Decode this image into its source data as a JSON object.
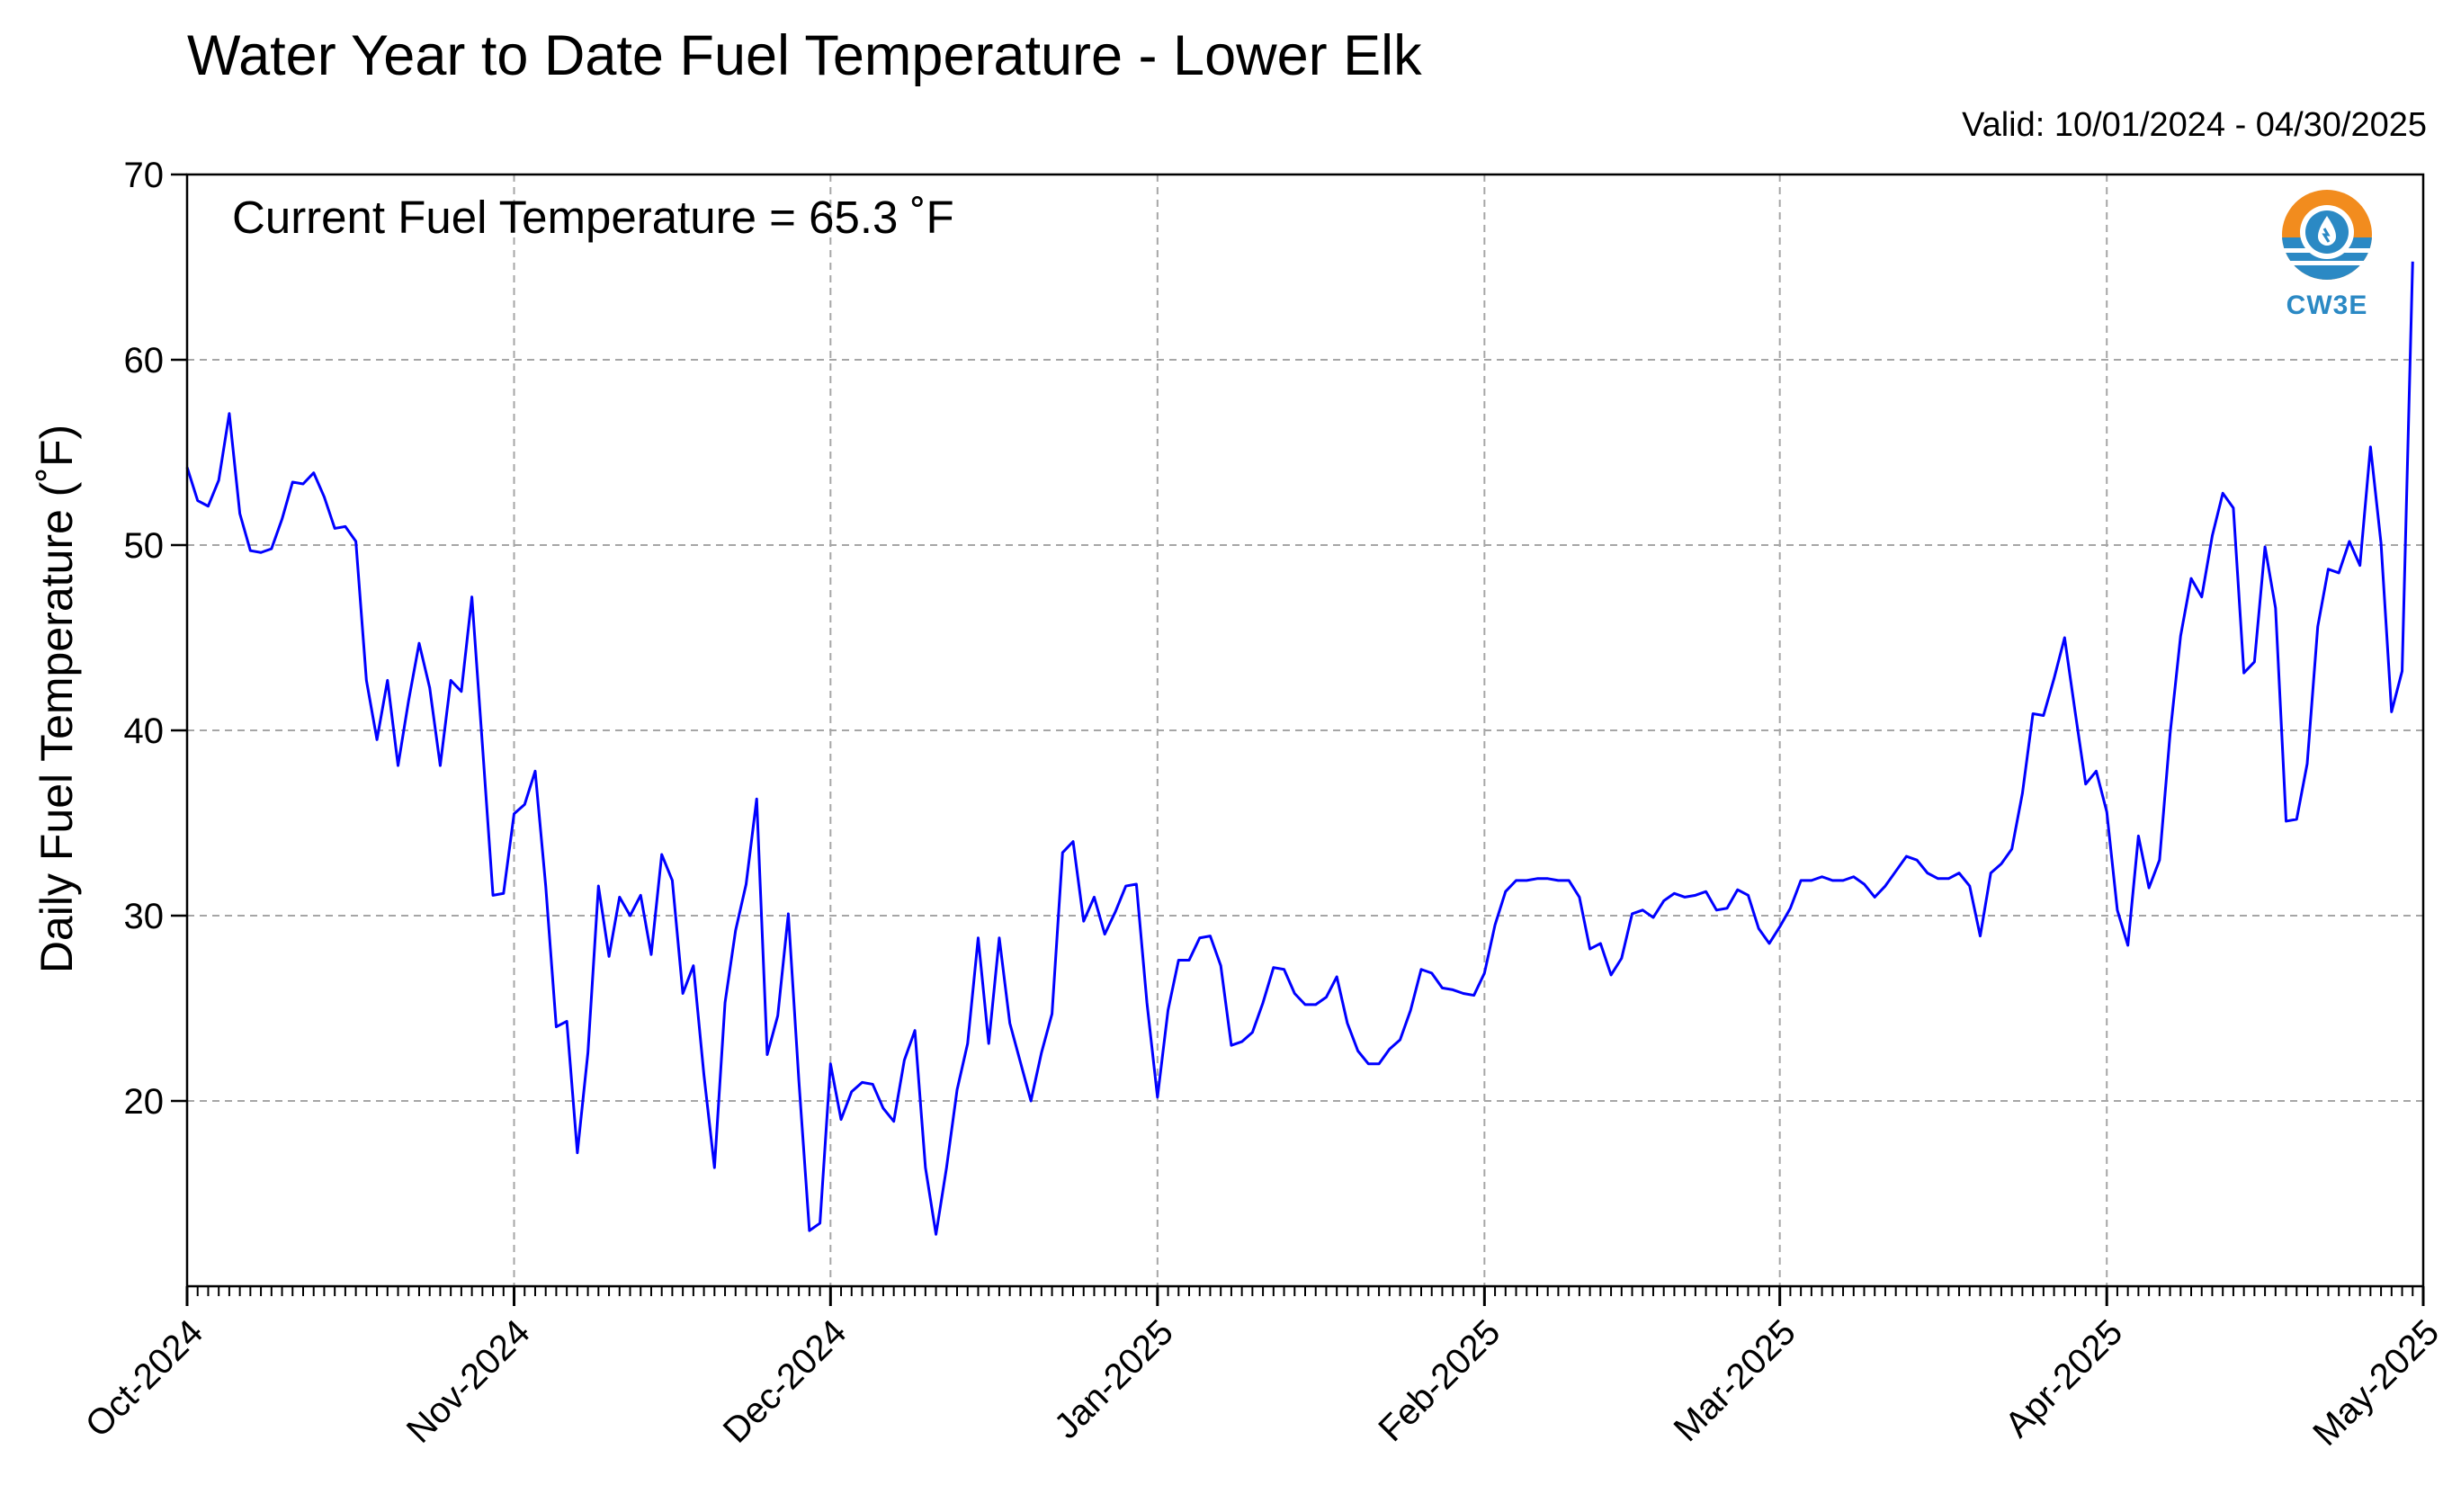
{
  "header": {
    "title": "Water Year to Date Fuel Temperature - Lower Elk",
    "valid": "Valid: 10/01/2024 - 04/30/2025"
  },
  "annotation": "Current Fuel Temperature = 65.3 ˚F",
  "logo": {
    "text": "CW3E",
    "colors": {
      "orange": "#f28c1e",
      "blue": "#2b89c4"
    }
  },
  "chart_data": {
    "type": "line",
    "title": "Water Year to Date Fuel Temperature - Lower Elk",
    "ylabel": "Daily Fuel Temperature (˚F)",
    "xlabel": "",
    "ylim": [
      10,
      70
    ],
    "xlim": [
      "2024-10-01",
      "2025-05-01"
    ],
    "grid": true,
    "line_color": "#0000ff",
    "y_ticks": [
      20,
      30,
      40,
      50,
      60,
      70
    ],
    "x_ticks": [
      {
        "date": "2024-10-01",
        "label": "Oct-2024"
      },
      {
        "date": "2024-11-01",
        "label": "Nov-2024"
      },
      {
        "date": "2024-12-01",
        "label": "Dec-2024"
      },
      {
        "date": "2025-01-01",
        "label": "Jan-2025"
      },
      {
        "date": "2025-02-01",
        "label": "Feb-2025"
      },
      {
        "date": "2025-03-01",
        "label": "Mar-2025"
      },
      {
        "date": "2025-04-01",
        "label": "Apr-2025"
      },
      {
        "date": "2025-05-01",
        "label": "May-2025"
      }
    ],
    "series": [
      {
        "start_date": "2024-10-01",
        "values": [
          54.2,
          52.4,
          52.1,
          53.5,
          57.1,
          51.7,
          49.7,
          49.6,
          49.8,
          51.4,
          53.4,
          53.3,
          53.9,
          52.6,
          50.9,
          51.0,
          50.2,
          42.7,
          39.5,
          42.7,
          38.1,
          41.6,
          44.7,
          42.3,
          38.1,
          42.7,
          42.1,
          47.2,
          39.2,
          31.1,
          31.2,
          35.5,
          36.0,
          37.8,
          31.6,
          24.0,
          24.3,
          17.2,
          22.6,
          31.6,
          27.8,
          31.0,
          30.0,
          31.1,
          27.9,
          33.3,
          31.9,
          25.8,
          27.3,
          21.4,
          16.4,
          25.3,
          29.2,
          31.7,
          36.3,
          22.5,
          24.6,
          30.1,
          21.1,
          13.0,
          13.4,
          22.0,
          19.0,
          20.5,
          21.0,
          20.9,
          19.6,
          18.9,
          22.2,
          23.8,
          16.4,
          12.8,
          16.4,
          20.6,
          23.1,
          28.8,
          23.1,
          28.8,
          24.2,
          22.1,
          20.0,
          22.6,
          24.7,
          33.4,
          34.0,
          29.7,
          31.0,
          29.0,
          30.2,
          31.6,
          31.7,
          25.3,
          20.2,
          24.9,
          27.6,
          27.6,
          28.8,
          28.9,
          27.3,
          23.0,
          23.2,
          23.7,
          25.3,
          27.2,
          27.1,
          25.8,
          25.2,
          25.2,
          25.6,
          26.7,
          24.2,
          22.7,
          22.0,
          22.0,
          22.8,
          23.3,
          24.9,
          27.1,
          26.9,
          26.1,
          26.0,
          25.8,
          25.7,
          26.9,
          29.5,
          31.3,
          31.9,
          31.9,
          32.0,
          32.0,
          31.9,
          31.9,
          31.0,
          28.2,
          28.5,
          26.8,
          27.7,
          30.1,
          30.3,
          29.9,
          30.8,
          31.2,
          31.0,
          31.1,
          31.3,
          30.3,
          30.4,
          31.4,
          31.1,
          29.3,
          28.5,
          29.4,
          30.4,
          31.9,
          31.9,
          32.1,
          31.9,
          31.9,
          32.1,
          31.7,
          31.0,
          31.6,
          32.4,
          33.2,
          33.0,
          32.3,
          32.0,
          32.0,
          32.3,
          31.6,
          28.9,
          32.3,
          32.8,
          33.6,
          36.6,
          40.9,
          40.8,
          42.8,
          45.0,
          41.0,
          37.1,
          37.8,
          35.6,
          30.3,
          28.4,
          34.3,
          31.5,
          33.0,
          39.8,
          45.1,
          48.2,
          47.2,
          50.5,
          52.8,
          52.0,
          43.1,
          43.7,
          49.9,
          46.6,
          35.1,
          35.2,
          38.2,
          45.6,
          48.7,
          48.5,
          50.2,
          48.9,
          55.3,
          50.1,
          41.0,
          43.2,
          65.3
        ]
      }
    ]
  }
}
